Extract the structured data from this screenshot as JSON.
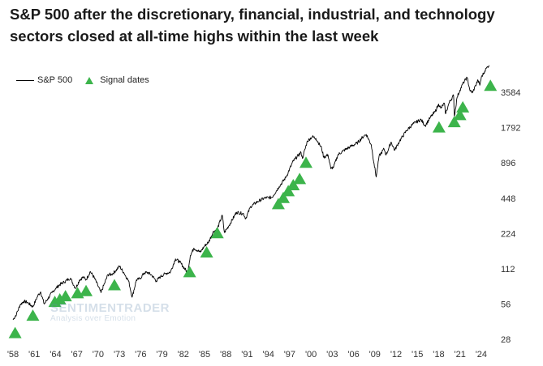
{
  "chart_data": {
    "type": "line",
    "title": "S&P 500 after the discretionary, financial, industrial, and technology sectors closed at all-time highs within the last week",
    "xlabel": "",
    "ylabel": "",
    "y_scale": "log2",
    "ylim": [
      28,
      7000
    ],
    "xlim": [
      1958,
      2025.5
    ],
    "x_ticks": [
      {
        "value": 1958,
        "label": "'58"
      },
      {
        "value": 1961,
        "label": "'61"
      },
      {
        "value": 1964,
        "label": "'64"
      },
      {
        "value": 1967,
        "label": "'67"
      },
      {
        "value": 1970,
        "label": "'70"
      },
      {
        "value": 1973,
        "label": "'73"
      },
      {
        "value": 1976,
        "label": "'76"
      },
      {
        "value": 1979,
        "label": "'79"
      },
      {
        "value": 1982,
        "label": "'82"
      },
      {
        "value": 1985,
        "label": "'85"
      },
      {
        "value": 1988,
        "label": "'88"
      },
      {
        "value": 1991,
        "label": "'91"
      },
      {
        "value": 1994,
        "label": "'94"
      },
      {
        "value": 1997,
        "label": "'97"
      },
      {
        "value": 2000,
        "label": "'00"
      },
      {
        "value": 2003,
        "label": "'03"
      },
      {
        "value": 2006,
        "label": "'06"
      },
      {
        "value": 2009,
        "label": "'09"
      },
      {
        "value": 2012,
        "label": "'12"
      },
      {
        "value": 2015,
        "label": "'15"
      },
      {
        "value": 2018,
        "label": "'18"
      },
      {
        "value": 2021,
        "label": "'21"
      },
      {
        "value": 2024,
        "label": "'24"
      }
    ],
    "y_ticks": [
      {
        "value": 28,
        "label": "28"
      },
      {
        "value": 56,
        "label": "56"
      },
      {
        "value": 112,
        "label": "112"
      },
      {
        "value": 224,
        "label": "224"
      },
      {
        "value": 448,
        "label": "448"
      },
      {
        "value": 896,
        "label": "896"
      },
      {
        "value": 1792,
        "label": "1792"
      },
      {
        "value": 3584,
        "label": "3584"
      }
    ],
    "legend": [
      {
        "name": "S&P 500",
        "kind": "line",
        "color": "#000000"
      },
      {
        "name": "Signal dates",
        "kind": "triangle",
        "color": "#3cb44b"
      }
    ],
    "series": [
      {
        "name": "S&P 500",
        "color": "#000000",
        "points": [
          [
            1958.0,
            41
          ],
          [
            1958.5,
            46
          ],
          [
            1959.0,
            55
          ],
          [
            1959.5,
            59
          ],
          [
            1960.0,
            58
          ],
          [
            1960.8,
            53
          ],
          [
            1961.5,
            66
          ],
          [
            1961.9,
            71
          ],
          [
            1962.4,
            56
          ],
          [
            1962.9,
            62
          ],
          [
            1963.5,
            70
          ],
          [
            1964.0,
            76
          ],
          [
            1964.6,
            82
          ],
          [
            1965.2,
            86
          ],
          [
            1965.8,
            91
          ],
          [
            1966.1,
            93
          ],
          [
            1966.8,
            76
          ],
          [
            1967.4,
            90
          ],
          [
            1967.9,
            95
          ],
          [
            1968.3,
            90
          ],
          [
            1968.9,
            106
          ],
          [
            1969.5,
            93
          ],
          [
            1970.4,
            70
          ],
          [
            1970.9,
            84
          ],
          [
            1971.4,
            100
          ],
          [
            1971.9,
            100
          ],
          [
            1972.5,
            108
          ],
          [
            1973.0,
            118
          ],
          [
            1973.6,
            104
          ],
          [
            1974.3,
            88
          ],
          [
            1974.8,
            64
          ],
          [
            1975.4,
            90
          ],
          [
            1975.9,
            92
          ],
          [
            1976.5,
            103
          ],
          [
            1977.0,
            104
          ],
          [
            1977.6,
            98
          ],
          [
            1978.2,
            88
          ],
          [
            1978.8,
            96
          ],
          [
            1979.5,
            102
          ],
          [
            1980.2,
            105
          ],
          [
            1980.9,
            136
          ],
          [
            1981.5,
            128
          ],
          [
            1982.6,
            104
          ],
          [
            1983.0,
            145
          ],
          [
            1983.5,
            168
          ],
          [
            1984.4,
            155
          ],
          [
            1985.0,
            175
          ],
          [
            1985.6,
            190
          ],
          [
            1986.2,
            230
          ],
          [
            1986.8,
            245
          ],
          [
            1987.5,
            320
          ],
          [
            1987.8,
            228
          ],
          [
            1988.5,
            265
          ],
          [
            1989.5,
            340
          ],
          [
            1990.5,
            330
          ],
          [
            1990.8,
            300
          ],
          [
            1991.5,
            380
          ],
          [
            1992.5,
            420
          ],
          [
            1993.5,
            450
          ],
          [
            1994.5,
            455
          ],
          [
            1995.5,
            560
          ],
          [
            1996.5,
            680
          ],
          [
            1997.5,
            930
          ],
          [
            1998.6,
            1100
          ],
          [
            1998.8,
            980
          ],
          [
            1999.5,
            1380
          ],
          [
            2000.2,
            1500
          ],
          [
            2000.7,
            1450
          ],
          [
            2001.5,
            1200
          ],
          [
            2001.8,
            1000
          ],
          [
            2002.4,
            1050
          ],
          [
            2002.8,
            800
          ],
          [
            2003.2,
            830
          ],
          [
            2003.8,
            1050
          ],
          [
            2004.5,
            1130
          ],
          [
            2005.5,
            1230
          ],
          [
            2006.5,
            1320
          ],
          [
            2007.5,
            1530
          ],
          [
            2007.8,
            1565
          ],
          [
            2008.5,
            1280
          ],
          [
            2008.9,
            880
          ],
          [
            2009.2,
            680
          ],
          [
            2009.6,
            1020
          ],
          [
            2010.3,
            1180
          ],
          [
            2010.6,
            1050
          ],
          [
            2011.3,
            1350
          ],
          [
            2011.8,
            1150
          ],
          [
            2012.5,
            1380
          ],
          [
            2013.5,
            1700
          ],
          [
            2014.5,
            1950
          ],
          [
            2015.5,
            2100
          ],
          [
            2016.1,
            1860
          ],
          [
            2016.8,
            2180
          ],
          [
            2017.5,
            2450
          ],
          [
            2018.0,
            2850
          ],
          [
            2018.3,
            2620
          ],
          [
            2018.8,
            2900
          ],
          [
            2018.98,
            2350
          ],
          [
            2019.5,
            2950
          ],
          [
            2020.1,
            3380
          ],
          [
            2020.22,
            2240
          ],
          [
            2020.6,
            3250
          ],
          [
            2021.0,
            3750
          ],
          [
            2021.5,
            4350
          ],
          [
            2022.0,
            4790
          ],
          [
            2022.45,
            3670
          ],
          [
            2022.8,
            3580
          ],
          [
            2023.2,
            4100
          ],
          [
            2023.55,
            4550
          ],
          [
            2023.8,
            4120
          ],
          [
            2024.0,
            4780
          ],
          [
            2024.5,
            5450
          ],
          [
            2024.9,
            5950
          ],
          [
            2025.1,
            6100
          ]
        ]
      },
      {
        "name": "Signal dates",
        "color": "#3cb44b",
        "points": [
          [
            1958.3,
            32
          ],
          [
            1960.8,
            45
          ],
          [
            1963.9,
            59
          ],
          [
            1964.6,
            62
          ],
          [
            1965.4,
            66
          ],
          [
            1967.1,
            70
          ],
          [
            1968.3,
            73
          ],
          [
            1972.3,
            82
          ],
          [
            1982.9,
            106
          ],
          [
            1985.3,
            156
          ],
          [
            1986.8,
            228
          ],
          [
            1995.4,
            403
          ],
          [
            1996.1,
            455
          ],
          [
            1996.8,
            520
          ],
          [
            1997.5,
            585
          ],
          [
            1998.4,
            660
          ],
          [
            1999.3,
            910
          ],
          [
            2018.05,
            1820
          ],
          [
            2020.2,
            2020
          ],
          [
            2021.0,
            2320
          ],
          [
            2021.4,
            2700
          ],
          [
            2025.3,
            4120
          ]
        ]
      }
    ]
  },
  "legend": {
    "line_label": "S&P 500",
    "marker_label": "Signal dates"
  },
  "watermark": {
    "main": "SENTIMENTRADER",
    "sub": "Analysis over Emotion"
  }
}
